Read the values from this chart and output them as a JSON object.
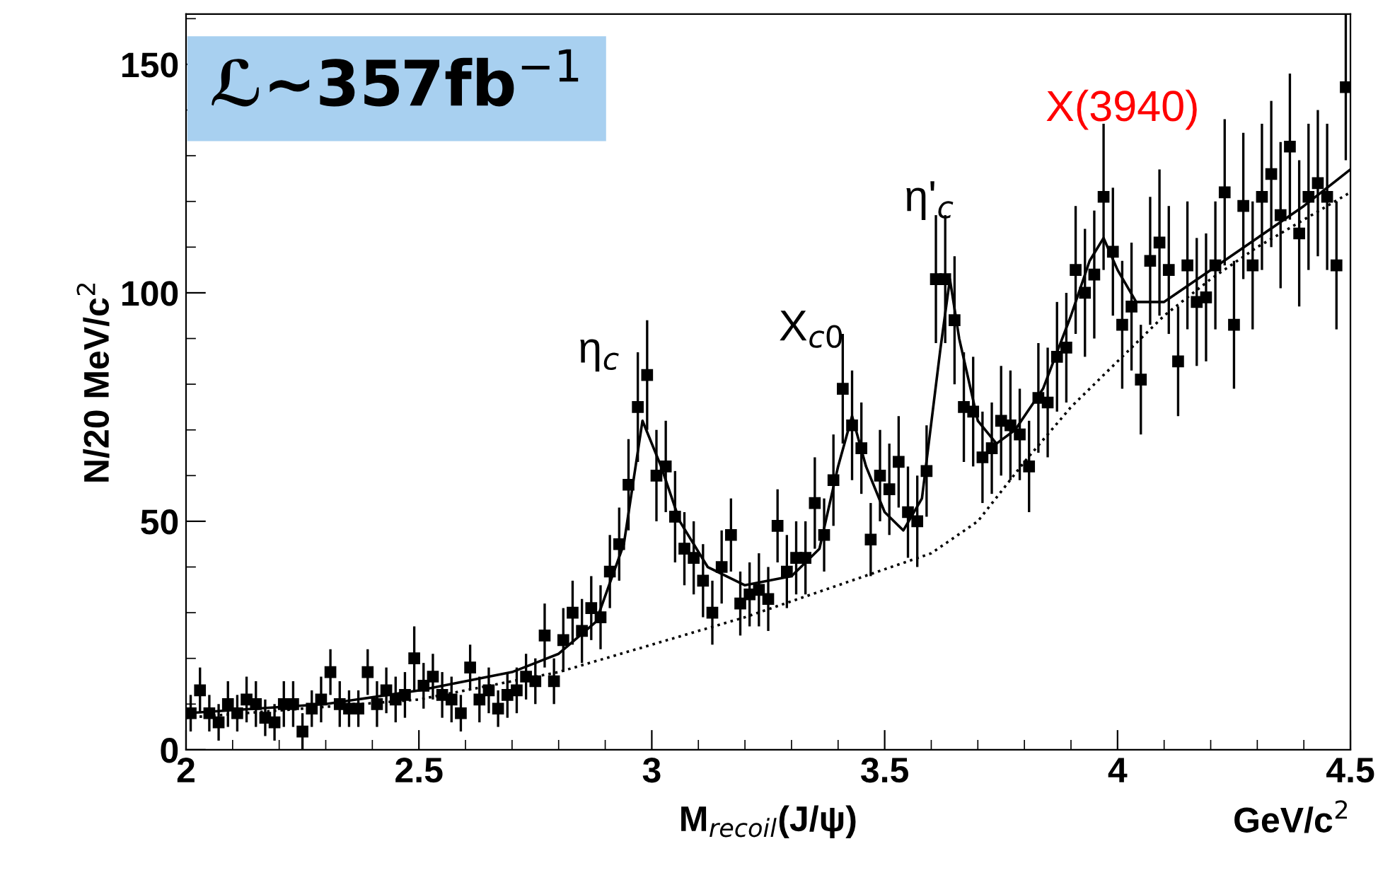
{
  "chart_data": {
    "type": "scatter",
    "xlabel": "M$_{recoil}$(J/ψ)",
    "ylabel": "N/20 MeV/c$^{2}$",
    "xlim": [
      2,
      4.5
    ],
    "xticks": [
      2,
      2.5,
      3,
      3.5,
      4,
      4.5
    ],
    "ylim": [
      0,
      161
    ],
    "yticks": [
      0,
      50,
      100,
      150
    ],
    "grid": false,
    "legend": false,
    "annotations": [
      "ℒ~357fb$^{−1}$",
      "GeV/c$^{2}$",
      {
        "text": "η$_{c}$",
        "x": 2.98,
        "y": 75
      },
      {
        "text": "X$_{c0}$",
        "x": 3.42,
        "y": 79
      },
      {
        "text": "η'$_{c}$",
        "x": 3.63,
        "y": 103
      },
      {
        "text": "X(3940)",
        "x": 3.96,
        "y": 112
      }
    ],
    "series": [
      {
        "color": "#000000",
        "marker": "square",
        "x": [
          2.01,
          2.03,
          2.05,
          2.07,
          2.09,
          2.11,
          2.13,
          2.15,
          2.17,
          2.19,
          2.21,
          2.23,
          2.25,
          2.27,
          2.29,
          2.31,
          2.33,
          2.35,
          2.37,
          2.39,
          2.41,
          2.43,
          2.45,
          2.47,
          2.49,
          2.51,
          2.53,
          2.55,
          2.57,
          2.59,
          2.61,
          2.63,
          2.65,
          2.67,
          2.69,
          2.71,
          2.73,
          2.75,
          2.77,
          2.79,
          2.81,
          2.83,
          2.85,
          2.87,
          2.89,
          2.91,
          2.93,
          2.95,
          2.97,
          2.99,
          3.01,
          3.03,
          3.05,
          3.07,
          3.09,
          3.11,
          3.13,
          3.15,
          3.17,
          3.19,
          3.21,
          3.23,
          3.25,
          3.27,
          3.29,
          3.31,
          3.33,
          3.35,
          3.37,
          3.39,
          3.41,
          3.43,
          3.45,
          3.47,
          3.49,
          3.51,
          3.53,
          3.55,
          3.57,
          3.59,
          3.61,
          3.63,
          3.65,
          3.67,
          3.69,
          3.71,
          3.73,
          3.75,
          3.77,
          3.79,
          3.81,
          3.83,
          3.85,
          3.87,
          3.89,
          3.91,
          3.93,
          3.95,
          3.97,
          3.99,
          4.01,
          4.03,
          4.05,
          4.07,
          4.09,
          4.11,
          4.13,
          4.15,
          4.17,
          4.19,
          4.21,
          4.23,
          4.25,
          4.27,
          4.29,
          4.31,
          4.33,
          4.35,
          4.37,
          4.39,
          4.41,
          4.43,
          4.45,
          4.47,
          4.49
        ],
        "values": [
          8,
          13,
          8,
          6,
          10,
          8,
          11,
          10,
          7,
          6,
          10,
          10,
          4,
          9,
          11,
          17,
          10,
          9,
          9,
          17,
          10,
          13,
          11,
          12,
          20,
          14,
          16,
          12,
          11,
          8,
          18,
          11,
          13,
          9,
          12,
          13,
          16,
          15,
          25,
          15,
          24,
          30,
          26,
          31,
          29,
          39,
          45,
          58,
          75,
          82,
          60,
          62,
          51,
          44,
          42,
          37,
          30,
          40,
          47,
          32,
          34,
          35,
          33,
          49,
          39,
          42,
          42,
          54,
          47,
          59,
          79,
          71,
          66,
          46,
          60,
          57,
          63,
          52,
          50,
          61,
          103,
          103,
          94,
          75,
          74,
          64,
          66,
          72,
          71,
          69,
          62,
          77,
          76,
          86,
          88,
          105,
          100,
          104,
          121,
          109,
          93,
          97,
          81,
          107,
          111,
          105,
          85,
          106,
          98,
          99,
          106,
          122,
          93,
          119,
          106,
          121,
          126,
          117,
          132,
          113,
          121,
          124,
          121,
          106,
          145
        ],
        "errors": [
          4,
          5,
          4,
          4,
          5,
          4,
          5,
          5,
          4,
          4,
          5,
          5,
          4,
          4,
          5,
          5,
          5,
          4,
          4,
          5,
          5,
          5,
          5,
          5,
          7,
          5,
          5,
          5,
          5,
          4,
          5,
          5,
          5,
          4,
          5,
          5,
          5,
          5,
          7,
          5,
          7,
          7,
          7,
          7,
          7,
          8,
          8,
          10,
          12,
          12,
          10,
          10,
          10,
          8,
          8,
          8,
          7,
          8,
          8,
          7,
          7,
          8,
          7,
          8,
          8,
          8,
          8,
          10,
          8,
          10,
          12,
          12,
          10,
          8,
          10,
          10,
          10,
          10,
          10,
          10,
          14,
          14,
          14,
          12,
          12,
          10,
          10,
          12,
          12,
          10,
          10,
          12,
          12,
          12,
          12,
          14,
          14,
          14,
          16,
          14,
          14,
          14,
          12,
          14,
          16,
          14,
          12,
          14,
          14,
          14,
          14,
          16,
          14,
          16,
          14,
          16,
          16,
          16,
          16,
          16,
          16,
          16,
          16,
          14,
          16
        ]
      },
      {
        "type": "line",
        "color": "#000000",
        "line_style": "solid",
        "x": [
          2.0,
          2.3,
          2.5,
          2.7,
          2.8,
          2.88,
          2.94,
          2.98,
          3.02,
          3.06,
          3.12,
          3.2,
          3.3,
          3.36,
          3.4,
          3.43,
          3.46,
          3.5,
          3.54,
          3.58,
          3.62,
          3.64,
          3.66,
          3.7,
          3.74,
          3.78,
          3.84,
          3.9,
          3.94,
          3.97,
          4.0,
          4.04,
          4.1,
          4.2,
          4.3,
          4.4,
          4.5
        ],
        "values": [
          8,
          10,
          13,
          17,
          21,
          28,
          45,
          72,
          62,
          50,
          40,
          36,
          38,
          44,
          62,
          73,
          62,
          52,
          48,
          55,
          88,
          103,
          90,
          72,
          67,
          70,
          79,
          95,
          107,
          112,
          105,
          98,
          98,
          105,
          112,
          119,
          127
        ]
      },
      {
        "type": "line",
        "color": "#000000",
        "line_style": "dotted",
        "x": [
          2.0,
          2.5,
          2.8,
          3.0,
          3.2,
          3.4,
          3.6,
          3.7,
          3.8,
          3.9,
          4.0,
          4.1,
          4.2,
          4.3,
          4.4,
          4.5
        ],
        "values": [
          7,
          11,
          17,
          23,
          29,
          36,
          43,
          50,
          63,
          75,
          85,
          95,
          103,
          110,
          116,
          122
        ]
      }
    ]
  }
}
